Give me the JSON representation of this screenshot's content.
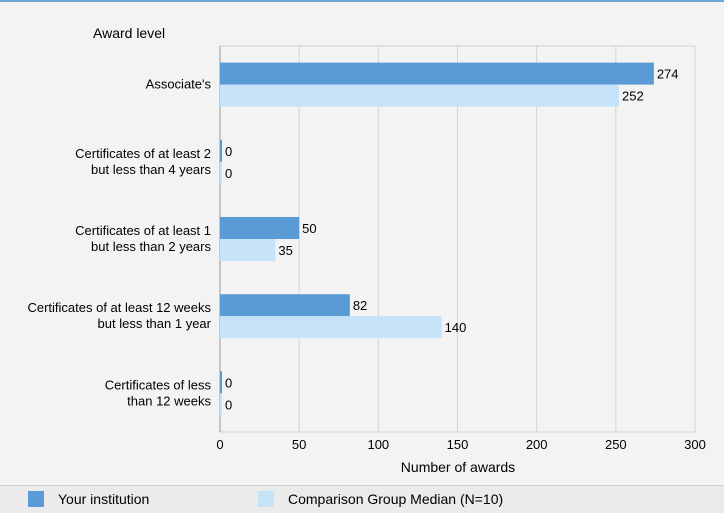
{
  "chart_data": {
    "type": "bar",
    "orientation": "horizontal",
    "ylabel": "Award level",
    "xlabel": "Number of awards",
    "categories": [
      [
        "Associate's"
      ],
      [
        "Certificates of at least 2",
        "but less than 4 years"
      ],
      [
        "Certificates of at least 1",
        "but  less than 2 years"
      ],
      [
        "Certificates of at least 12 weeks",
        "but less than 1 year"
      ],
      [
        "Certificates of less",
        "than 12 weeks"
      ]
    ],
    "series": [
      {
        "name": "Your institution",
        "values": [
          274,
          0,
          50,
          82,
          0
        ],
        "color": "#5b9bd5"
      },
      {
        "name": "Comparison Group Median (N=10)",
        "values": [
          252,
          0,
          35,
          140,
          0
        ],
        "color": "#c6e3f7"
      }
    ],
    "xlim": [
      0,
      300
    ],
    "xticks": [
      0,
      50,
      100,
      150,
      200,
      250,
      300
    ],
    "grid": true,
    "legend_position": "bottom"
  }
}
